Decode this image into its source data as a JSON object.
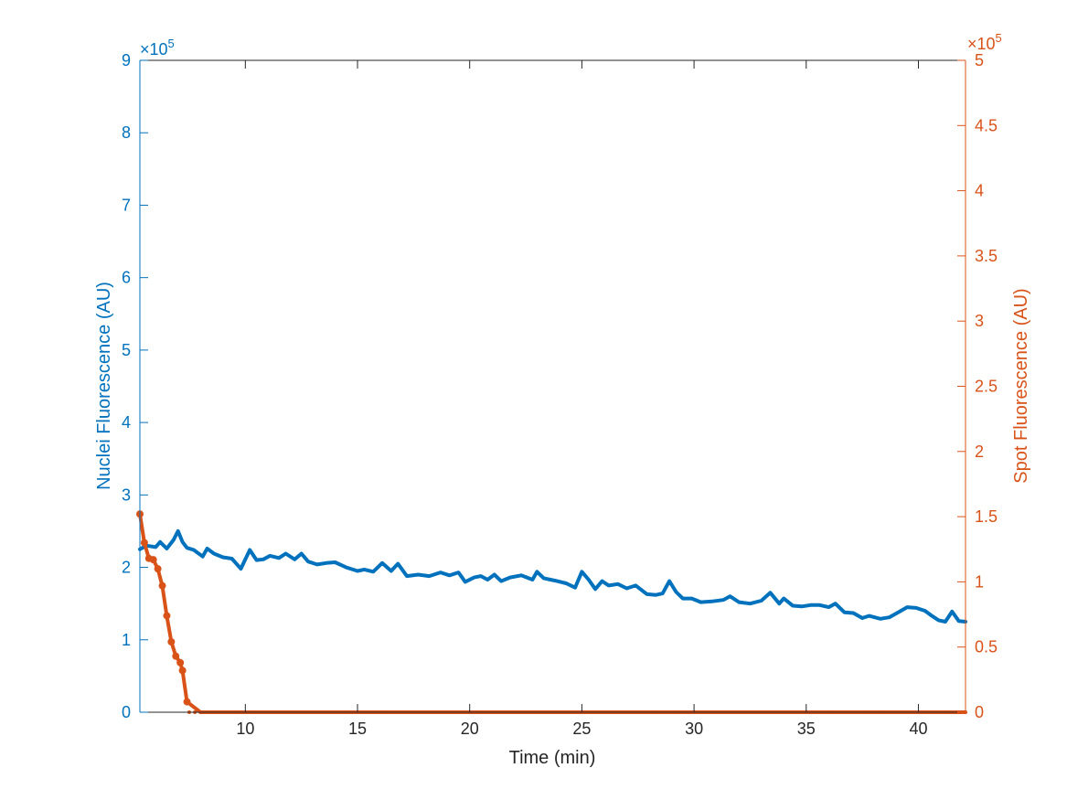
{
  "chart_data": {
    "type": "line",
    "xlabel": "Time (min)",
    "ylabel_left": "Nuclei Fluorescence (AU)",
    "ylabel_right": "Spot Fluorescence (AU)",
    "xlim": [
      5.3,
      42.1
    ],
    "ylim_left": [
      0,
      900000
    ],
    "ylim_right": [
      0,
      500000
    ],
    "x_ticks": [
      10,
      15,
      20,
      25,
      30,
      35,
      40
    ],
    "y_left_ticks": [
      0,
      1,
      2,
      3,
      4,
      5,
      6,
      7,
      8,
      9
    ],
    "y_right_ticks": [
      0,
      0.5,
      1,
      1.5,
      2,
      2.5,
      3,
      3.5,
      4,
      4.5,
      5
    ],
    "y_left_tick_labels": [
      "0",
      "1",
      "2",
      "3",
      "4",
      "5",
      "6",
      "7",
      "8",
      "9"
    ],
    "y_right_tick_labels": [
      "0",
      "0.5",
      "1",
      "1.5",
      "2",
      "2.5",
      "3",
      "3.5",
      "4",
      "4.5",
      "5"
    ],
    "x_tick_labels": [
      "10",
      "15",
      "20",
      "25",
      "30",
      "35",
      "40"
    ],
    "left_exponent": "×10",
    "left_exponent_power": "5",
    "right_exponent": "×10",
    "right_exponent_power": "5",
    "grid": false,
    "colors": {
      "nuclei": "#0072BD",
      "spot": "#D95319",
      "axis": "#262626"
    },
    "series": [
      {
        "axis": "left",
        "x": [
          5.3,
          5.6,
          6.0,
          6.2,
          6.5,
          6.8,
          7.0,
          7.2,
          7.4,
          7.7,
          8.1,
          8.3,
          8.6,
          9.0,
          9.4,
          9.8,
          10.2,
          10.5,
          10.8,
          11.1,
          11.5,
          11.8,
          12.2,
          12.5,
          12.8,
          13.2,
          13.6,
          14.0,
          14.5,
          15.0,
          15.3,
          15.7,
          16.1,
          16.5,
          16.8,
          17.2,
          17.7,
          18.2,
          18.7,
          19.1,
          19.5,
          19.8,
          20.2,
          20.5,
          20.8,
          21.1,
          21.4,
          21.8,
          22.3,
          22.8,
          23.0,
          23.3,
          23.6,
          23.9,
          24.3,
          24.7,
          25.0,
          25.3,
          25.6,
          25.9,
          26.2,
          26.6,
          27.0,
          27.4,
          27.9,
          28.3,
          28.6,
          28.9,
          29.2,
          29.5,
          29.9,
          30.3,
          30.8,
          31.3,
          31.6,
          32.0,
          32.5,
          33.0,
          33.4,
          33.8,
          34.0,
          34.4,
          34.8,
          35.2,
          35.6,
          36.0,
          36.3,
          36.7,
          37.1,
          37.5,
          37.8,
          38.3,
          38.7,
          39.1,
          39.5,
          39.9,
          40.3,
          40.6,
          40.9,
          41.2,
          41.5,
          41.8,
          42.1
        ],
        "y": [
          225000,
          230000,
          228000,
          235000,
          226000,
          238000,
          250000,
          235000,
          227000,
          224000,
          215000,
          226000,
          219000,
          214000,
          212000,
          198000,
          224000,
          210000,
          211000,
          216000,
          213000,
          219000,
          211000,
          219000,
          208000,
          204000,
          206000,
          207000,
          200000,
          195000,
          197000,
          194000,
          206000,
          195000,
          205000,
          188000,
          190000,
          188000,
          193000,
          189000,
          193000,
          180000,
          186000,
          188000,
          183000,
          190000,
          181000,
          186000,
          189000,
          183000,
          194000,
          185000,
          183000,
          181000,
          178000,
          172000,
          194000,
          183000,
          170000,
          181000,
          175000,
          177000,
          171000,
          175000,
          163000,
          162000,
          164000,
          181000,
          166000,
          157000,
          157000,
          152000,
          153000,
          155000,
          160000,
          152000,
          150000,
          154000,
          165000,
          150000,
          157000,
          147000,
          146000,
          148000,
          148000,
          145000,
          150000,
          138000,
          137000,
          130000,
          133000,
          129000,
          131000,
          138000,
          145000,
          144000,
          140000,
          133000,
          127000,
          125000,
          139000,
          126000,
          125000
        ]
      },
      {
        "axis": "right",
        "x": [
          5.3,
          5.5,
          5.7,
          5.9,
          6.1,
          6.3,
          6.5,
          6.7,
          6.9,
          7.1,
          7.2,
          7.4,
          8.0,
          9.0,
          10.0,
          12.0,
          15.0,
          20.0,
          25.0,
          30.0,
          35.0,
          40.0,
          42.1
        ],
        "y": [
          152000,
          130000,
          118000,
          117000,
          110000,
          97000,
          74000,
          54000,
          43000,
          38000,
          32000,
          8000,
          0,
          0,
          0,
          0,
          0,
          0,
          0,
          0,
          0,
          0,
          0
        ]
      }
    ]
  }
}
